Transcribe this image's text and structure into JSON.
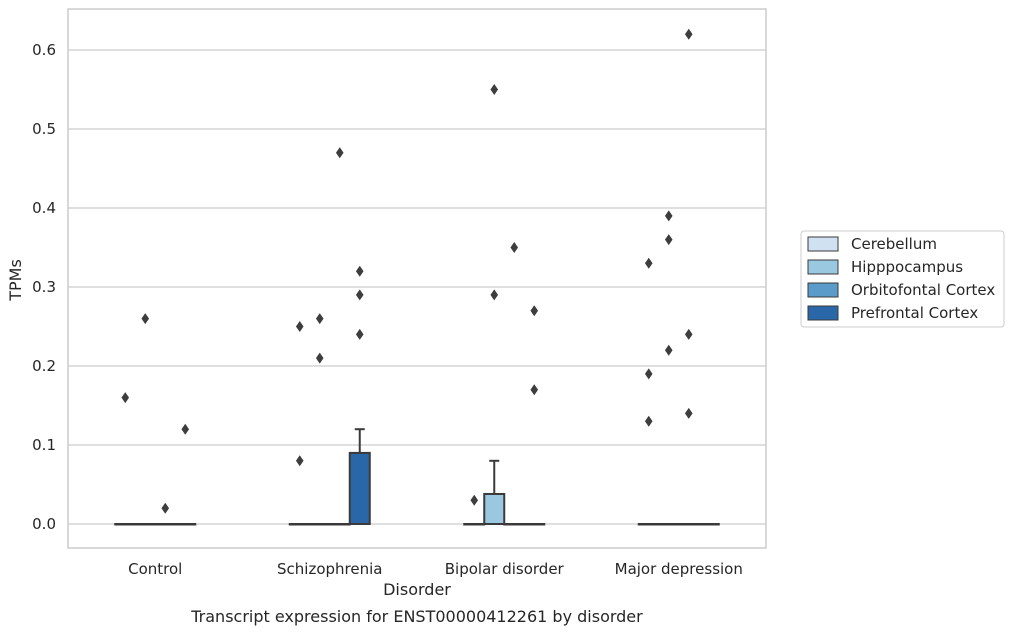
{
  "chart_data": {
    "type": "box",
    "title": "",
    "caption": "Transcript expression for ENST00000412261 by disorder",
    "xlabel": "Disorder",
    "ylabel": "TPMs",
    "ylim": [
      -0.03,
      0.655
    ],
    "yticks": [
      "0.0",
      "0.1",
      "0.2",
      "0.3",
      "0.4",
      "0.5",
      "0.6"
    ],
    "categories": [
      "Control",
      "Schizophrenia",
      "Bipolar disorder",
      "Major depression"
    ],
    "grid": true,
    "legend_position": "right",
    "series": [
      {
        "name": "Cerebellum",
        "color": "#d0e1f2",
        "boxes": [
          {
            "q1": 0,
            "median": 0,
            "q3": 0,
            "whisker_low": 0,
            "whisker_high": 0,
            "outliers": [
              0.16
            ]
          },
          {
            "q1": 0,
            "median": 0,
            "q3": 0,
            "whisker_low": 0,
            "whisker_high": 0,
            "outliers": [
              0.25,
              0.08
            ]
          },
          {
            "q1": 0,
            "median": 0,
            "q3": 0,
            "whisker_low": 0,
            "whisker_high": 0,
            "outliers": [
              0.03
            ]
          },
          {
            "q1": 0,
            "median": 0,
            "q3": 0,
            "whisker_low": 0,
            "whisker_high": 0,
            "outliers": [
              0.33,
              0.19,
              0.13
            ]
          }
        ]
      },
      {
        "name": "Hipppocampus",
        "color": "#9ac8e0",
        "boxes": [
          {
            "q1": 0,
            "median": 0,
            "q3": 0,
            "whisker_low": 0,
            "whisker_high": 0,
            "outliers": [
              0.26
            ]
          },
          {
            "q1": 0,
            "median": 0,
            "q3": 0,
            "whisker_low": 0,
            "whisker_high": 0,
            "outliers": [
              0.26,
              0.21
            ]
          },
          {
            "q1": 0,
            "median": 0,
            "q3": 0.038,
            "whisker_low": 0,
            "whisker_high": 0.08,
            "outliers": [
              0.55,
              0.29
            ]
          },
          {
            "q1": 0,
            "median": 0,
            "q3": 0,
            "whisker_low": 0,
            "whisker_high": 0,
            "outliers": [
              0.39,
              0.36,
              0.22
            ]
          }
        ]
      },
      {
        "name": "Orbitofontal Cortex",
        "color": "#5a9bc9",
        "boxes": [
          {
            "q1": 0,
            "median": 0,
            "q3": 0,
            "whisker_low": 0,
            "whisker_high": 0,
            "outliers": [
              0.02
            ]
          },
          {
            "q1": 0,
            "median": 0,
            "q3": 0,
            "whisker_low": 0,
            "whisker_high": 0,
            "outliers": [
              0.47
            ]
          },
          {
            "q1": 0,
            "median": 0,
            "q3": 0,
            "whisker_low": 0,
            "whisker_high": 0,
            "outliers": [
              0.35
            ]
          },
          {
            "q1": 0,
            "median": 0,
            "q3": 0,
            "whisker_low": 0,
            "whisker_high": 0,
            "outliers": [
              0.62,
              0.24,
              0.14
            ]
          }
        ]
      },
      {
        "name": "Prefrontal Cortex",
        "color": "#2a67a9",
        "boxes": [
          {
            "q1": 0,
            "median": 0,
            "q3": 0,
            "whisker_low": 0,
            "whisker_high": 0,
            "outliers": [
              0.12
            ]
          },
          {
            "q1": 0,
            "median": 0,
            "q3": 0.09,
            "whisker_low": 0,
            "whisker_high": 0.12,
            "outliers": [
              0.32,
              0.29,
              0.24
            ]
          },
          {
            "q1": 0,
            "median": 0,
            "q3": 0,
            "whisker_low": 0,
            "whisker_high": 0,
            "outliers": [
              0.27,
              0.17
            ]
          },
          {
            "q1": 0,
            "median": 0,
            "q3": 0,
            "whisker_low": 0,
            "whisker_high": 0,
            "outliers": []
          }
        ]
      }
    ]
  }
}
